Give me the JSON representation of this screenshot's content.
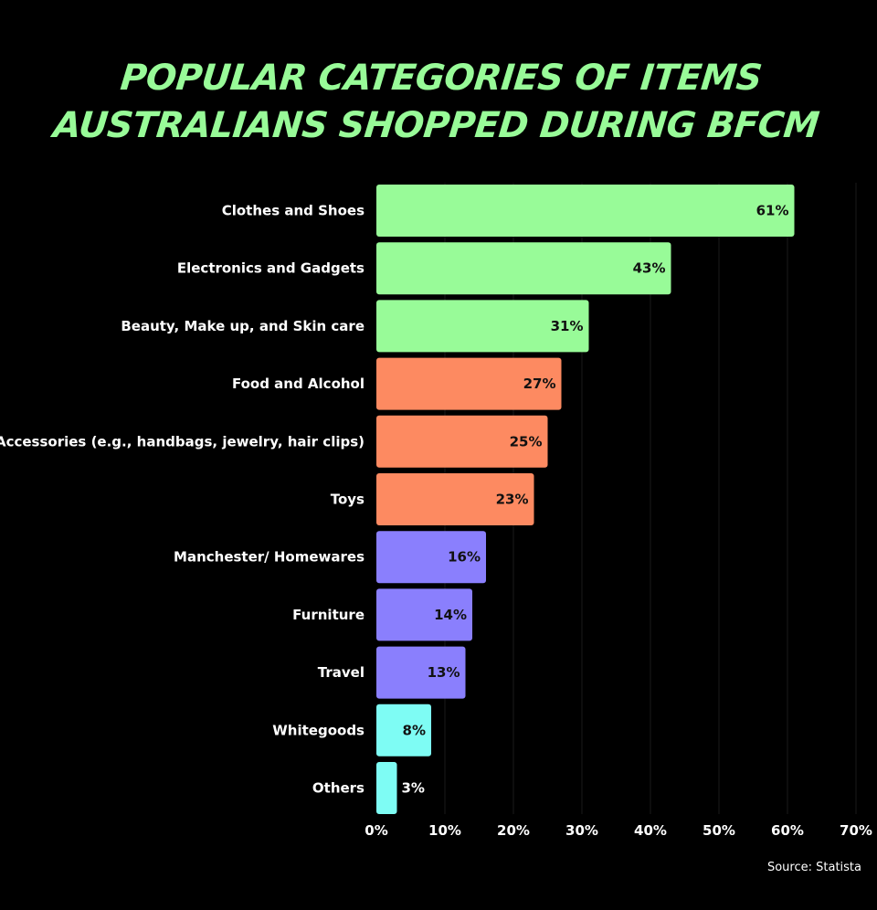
{
  "chart_data": {
    "type": "bar",
    "orientation": "horizontal",
    "title_lines": [
      "POPULAR CATEGORIES OF ITEMS",
      "AUSTRALIANS SHOPPED DURING BFCM"
    ],
    "categories": [
      "Clothes and Shoes",
      "Electronics and Gadgets",
      "Beauty, Make up, and Skin care",
      "Food and Alcohol",
      "Accessories (e.g., handbags, jewelry, hair clips)",
      "Toys",
      "Manchester/ Homewares",
      "Furniture",
      "Travel",
      "Whitegoods",
      "Others"
    ],
    "values": [
      61,
      43,
      31,
      27,
      25,
      23,
      16,
      14,
      13,
      8,
      3
    ],
    "value_labels": [
      "61%",
      "43%",
      "31%",
      "27%",
      "25%",
      "23%",
      "16%",
      "14%",
      "13%",
      "8%",
      "3%"
    ],
    "bar_colors": [
      "#98fb98",
      "#98fb98",
      "#98fb98",
      "#fd8a61",
      "#fd8a61",
      "#fd8a61",
      "#8a7ffd",
      "#8a7ffd",
      "#8a7ffd",
      "#7efcf4",
      "#7efcf4"
    ],
    "xlim": [
      0,
      70
    ],
    "xticks": [
      0,
      10,
      20,
      30,
      40,
      50,
      60,
      70
    ],
    "xtick_labels": [
      "0%",
      "10%",
      "20%",
      "30%",
      "40%",
      "50%",
      "60%",
      "70%"
    ],
    "grid": true,
    "xlabel": "",
    "ylabel": "",
    "source": "Source: Statista"
  },
  "colors": {
    "background": "#000000",
    "title": "#98fb98",
    "grid": "#1a1a1a"
  }
}
